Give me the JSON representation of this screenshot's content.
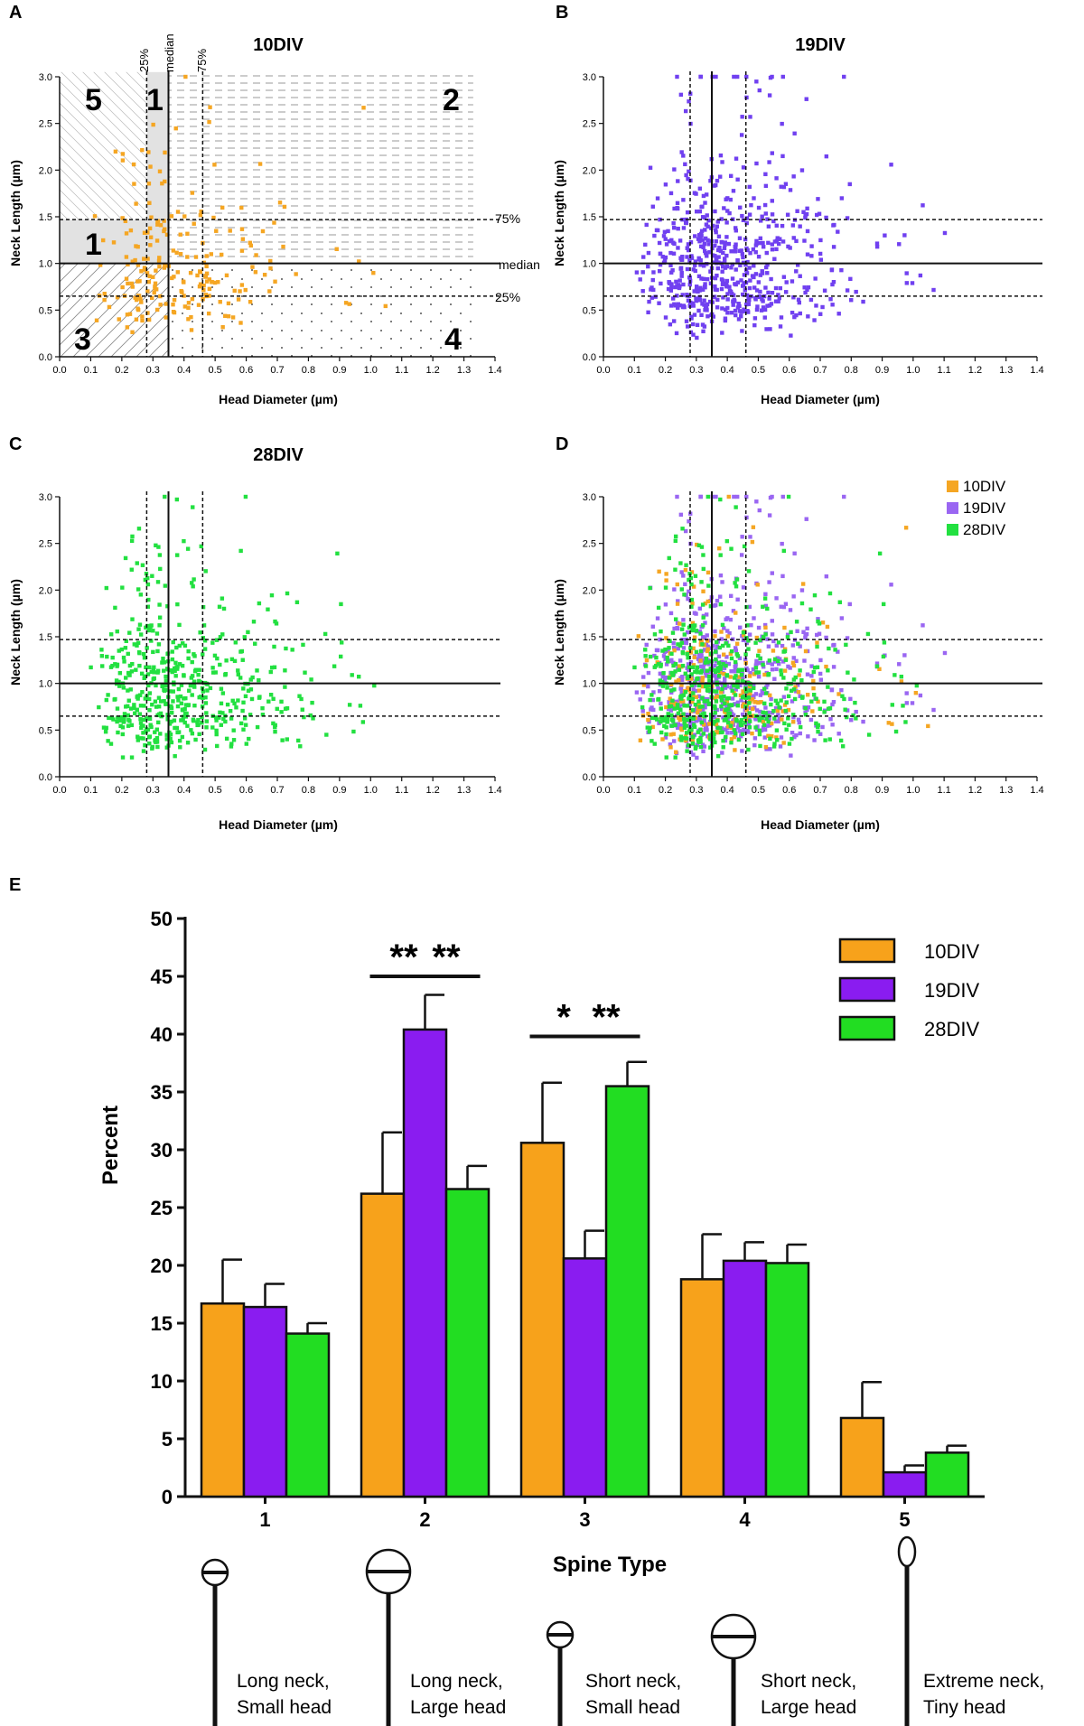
{
  "chart_data": [
    {
      "panel": "A",
      "type": "scatter",
      "title": "10DIV",
      "xlabel": "Head Diameter (µm)",
      "ylabel": "Neck Length (µm)",
      "xlim": [
        0.0,
        1.4
      ],
      "ylim": [
        0.0,
        3.0
      ],
      "xticks": [
        "0.0",
        "0.1",
        "0.2",
        "0.3",
        "0.4",
        "0.5",
        "0.6",
        "0.7",
        "0.8",
        "0.9",
        "1.0",
        "1.1",
        "1.2",
        "1.3",
        "1.4"
      ],
      "yticks": [
        "0.0",
        "0.5",
        "1.0",
        "1.5",
        "2.0",
        "2.5",
        "3.0"
      ],
      "color": "#f5a623",
      "seed": 11,
      "n_points": 220,
      "ref_lines": {
        "x_q25": 0.28,
        "x_median": 0.35,
        "x_q75": 0.46,
        "y_q25": 0.65,
        "y_median": 1.0,
        "y_q75": 1.47
      },
      "ref_labels": {
        "x_q25": "25%",
        "x_median": "median",
        "x_q75": "75%",
        "y_q75": "75%",
        "y_median": "median",
        "y_q25": "25%"
      },
      "region_labels": [
        "5",
        "1",
        "2",
        "1",
        "3",
        "4"
      ]
    },
    {
      "panel": "B",
      "type": "scatter",
      "title": "19DIV",
      "xlabel": "Head Diameter (µm)",
      "ylabel": "Neck Length (µm)",
      "xlim": [
        0.0,
        1.4
      ],
      "ylim": [
        0.0,
        3.0
      ],
      "xticks": [
        "0.0",
        "0.1",
        "0.2",
        "0.3",
        "0.4",
        "0.5",
        "0.6",
        "0.7",
        "0.8",
        "0.9",
        "1.0",
        "1.1",
        "1.2",
        "1.3",
        "1.4"
      ],
      "yticks": [
        "0.0",
        "0.5",
        "1.0",
        "1.5",
        "2.0",
        "2.5",
        "3.0"
      ],
      "color": "#7040f0",
      "seed": 23,
      "n_points": 620,
      "ref_lines": {
        "x_q25": 0.28,
        "x_median": 0.35,
        "x_q75": 0.46,
        "y_q25": 0.65,
        "y_median": 1.0,
        "y_q75": 1.47
      }
    },
    {
      "panel": "C",
      "type": "scatter",
      "title": "28DIV",
      "xlabel": "Head Diameter (µm)",
      "ylabel": "Neck Length (µm)",
      "xlim": [
        0.0,
        1.4
      ],
      "ylim": [
        0.0,
        3.0
      ],
      "xticks": [
        "0.0",
        "0.1",
        "0.2",
        "0.3",
        "0.4",
        "0.5",
        "0.6",
        "0.7",
        "0.8",
        "0.9",
        "1.0",
        "1.1",
        "1.2",
        "1.3",
        "1.4"
      ],
      "yticks": [
        "0.0",
        "0.5",
        "1.0",
        "1.5",
        "2.0",
        "2.5",
        "3.0"
      ],
      "color": "#22e040",
      "seed": 37,
      "n_points": 520,
      "ref_lines": {
        "x_q25": 0.28,
        "x_median": 0.35,
        "x_q75": 0.46,
        "y_q25": 0.65,
        "y_median": 1.0,
        "y_q75": 1.47
      }
    },
    {
      "panel": "D",
      "type": "scatter",
      "title": "",
      "xlabel": "Head Diameter (µm)",
      "ylabel": "Neck Length (µm)",
      "xlim": [
        0.0,
        1.4
      ],
      "ylim": [
        0.0,
        3.0
      ],
      "xticks": [
        "0.0",
        "0.1",
        "0.2",
        "0.3",
        "0.4",
        "0.5",
        "0.6",
        "0.7",
        "0.8",
        "0.9",
        "1.0",
        "1.1",
        "1.2",
        "1.3",
        "1.4"
      ],
      "yticks": [
        "0.0",
        "0.5",
        "1.0",
        "1.5",
        "2.0",
        "2.5",
        "3.0"
      ],
      "legend": [
        {
          "name": "10DIV",
          "color": "#f5a623"
        },
        {
          "name": "19DIV",
          "color": "#9a66f2"
        },
        {
          "name": "28DIV",
          "color": "#22e040"
        }
      ],
      "ref_lines": {
        "x_q25": 0.28,
        "x_median": 0.35,
        "x_q75": 0.46,
        "y_q25": 0.65,
        "y_median": 1.0,
        "y_q75": 1.47
      }
    },
    {
      "panel": "E",
      "type": "bar",
      "xlabel": "Spine Type",
      "ylabel": "Percent",
      "ylim": [
        0,
        50
      ],
      "yticks": [
        "0",
        "5",
        "10",
        "15",
        "20",
        "25",
        "30",
        "35",
        "40",
        "45",
        "50"
      ],
      "categories": [
        "1",
        "2",
        "3",
        "4",
        "5"
      ],
      "series": [
        {
          "name": "10DIV",
          "color": "#f7a21b",
          "values": [
            16.7,
            26.2,
            30.6,
            18.8,
            6.8
          ],
          "errors": [
            3.8,
            5.3,
            5.2,
            3.9,
            3.1
          ]
        },
        {
          "name": "19DIV",
          "color": "#8a1cf0",
          "values": [
            16.4,
            40.4,
            20.6,
            20.4,
            2.1
          ],
          "errors": [
            2.0,
            3.0,
            2.4,
            1.6,
            0.6
          ]
        },
        {
          "name": "28DIV",
          "color": "#22dd22",
          "values": [
            14.1,
            26.6,
            35.5,
            20.2,
            3.8
          ],
          "errors": [
            0.9,
            2.0,
            2.1,
            1.6,
            0.6
          ]
        }
      ],
      "significance": [
        {
          "category": 2,
          "label": "**",
          "between": [
            "10DIV",
            "19DIV"
          ]
        },
        {
          "category": 2,
          "label": "**",
          "between": [
            "19DIV",
            "28DIV"
          ]
        },
        {
          "category": 3,
          "label": "*",
          "between": [
            "10DIV",
            "19DIV"
          ]
        },
        {
          "category": 3,
          "label": "**",
          "between": [
            "19DIV",
            "28DIV"
          ]
        }
      ],
      "spine_types": [
        {
          "line1": "Long neck,",
          "line2": "Small head"
        },
        {
          "line1": "Long neck,",
          "line2": "Large head"
        },
        {
          "line1": "Short neck,",
          "line2": "Small head"
        },
        {
          "line1": "Short neck,",
          "line2": "Large head"
        },
        {
          "line1": "Extreme neck,",
          "line2": "Tiny head"
        }
      ]
    }
  ]
}
